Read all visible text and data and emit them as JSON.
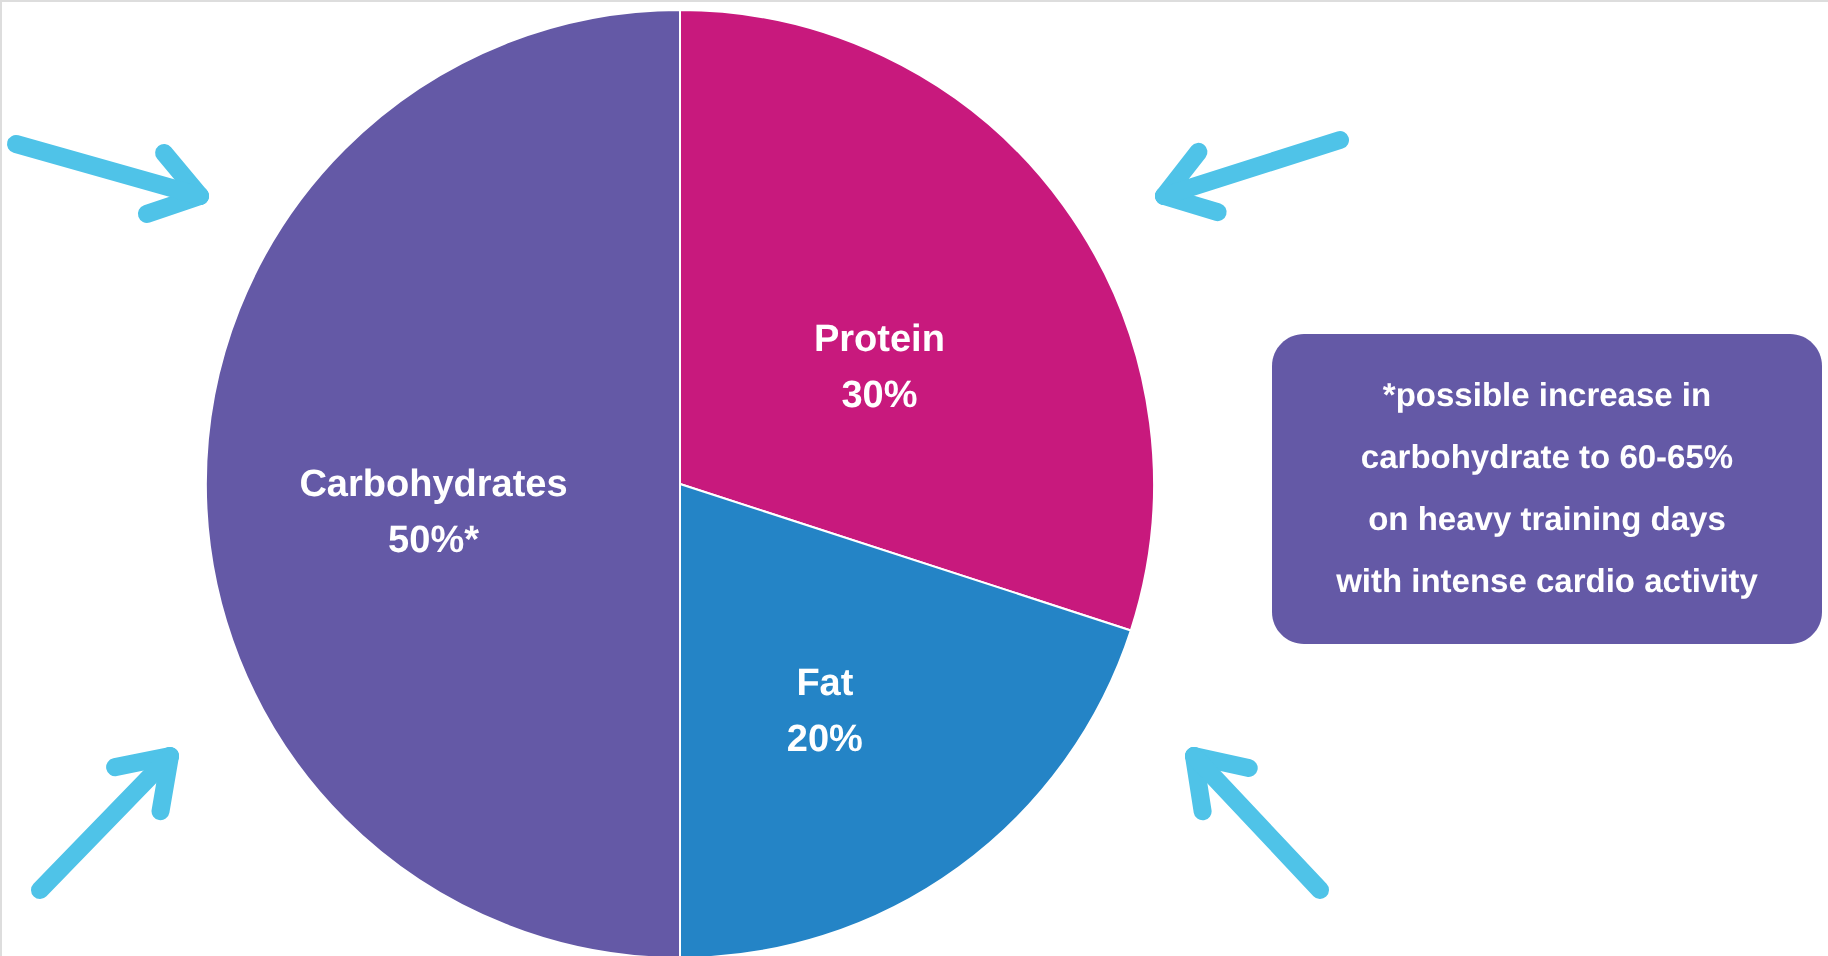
{
  "chart_data": {
    "type": "pie",
    "categories": [
      "Protein",
      "Fat",
      "Carbohydrates"
    ],
    "values": [
      30,
      20,
      50
    ],
    "value_labels": [
      "30%",
      "20%",
      "50%*"
    ],
    "colors": [
      "#c8197d",
      "#2484c6",
      "#6459a6"
    ],
    "annotations": [
      "*possible increase in\ncarbohydrate to 60-65%\non heavy training days\nwith intense cardio activity"
    ]
  }
}
